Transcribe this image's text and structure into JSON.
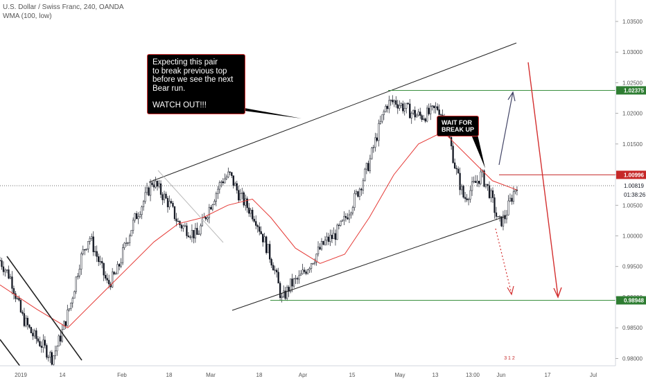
{
  "header": {
    "symbol_line": "U.S. Dollar / Swiss Franc, 240, OANDA",
    "indicator_line": "WMA (100, low)"
  },
  "annotations": {
    "main_note": {
      "lines": [
        "Expecting this pair",
        "to break previous top",
        "before we see the next",
        "Bear run."
      ],
      "emphasis": "WATCH OUT!!!"
    },
    "wait_note": {
      "lines": [
        "WAIT FOR",
        "BREAK UP"
      ]
    }
  },
  "price_labels": [
    {
      "value": "1.02375",
      "color": "#2e7d32"
    },
    {
      "value": "1.00996",
      "color": "#c62828"
    },
    {
      "value": "1.00819",
      "color": "#131722"
    },
    {
      "value": "01:38:26",
      "color": "#131722"
    },
    {
      "value": "0.98948",
      "color": "#2e7d32"
    }
  ],
  "watermark": "3 1 2",
  "colors": {
    "candles": "#131722",
    "wma": "#e53935",
    "channel": "#222222",
    "resistance": "#388e3c",
    "entry": "#c62828",
    "bull_arrow": "#424466",
    "bear_arrow": "#d32f2f"
  },
  "chart_data": {
    "type": "candlestick",
    "y_axis": {
      "ticks": [
        "1.03500",
        "1.03000",
        "1.02500",
        "1.02000",
        "1.01500",
        "1.01000",
        "1.00500",
        "1.00000",
        "0.99500",
        "0.99000",
        "0.98500",
        "0.98000"
      ],
      "ylim": [
        0.9788,
        1.0385
      ]
    },
    "x_axis": {
      "ticks": [
        "2019",
        "14",
        "Feb",
        "18",
        "Mar",
        "18",
        "Apr",
        "15",
        "May",
        "13",
        "13:00",
        "Jun",
        "17",
        "Jul"
      ]
    },
    "levels": {
      "resistance": 1.02375,
      "entry": 1.00996,
      "current": 1.00819,
      "support": 0.98948
    },
    "path": [
      [
        0.0,
        0.996
      ],
      [
        0.018,
        0.993
      ],
      [
        0.035,
        0.987
      ],
      [
        0.052,
        0.984
      ],
      [
        0.07,
        0.982
      ],
      [
        0.085,
        0.98
      ],
      [
        0.1,
        0.984
      ],
      [
        0.115,
        0.989
      ],
      [
        0.13,
        0.996
      ],
      [
        0.145,
        1.0
      ],
      [
        0.16,
        0.996
      ],
      [
        0.175,
        0.992
      ],
      [
        0.19,
        0.994
      ],
      [
        0.205,
        0.999
      ],
      [
        0.22,
        1.003
      ],
      [
        0.235,
        1.006
      ],
      [
        0.248,
        1.009
      ],
      [
        0.262,
        1.007
      ],
      [
        0.276,
        1.005
      ],
      [
        0.29,
        1.002
      ],
      [
        0.305,
        1.001
      ],
      [
        0.32,
        1.0
      ],
      [
        0.333,
        1.003
      ],
      [
        0.346,
        1.006
      ],
      [
        0.36,
        1.009
      ],
      [
        0.373,
        1.01
      ],
      [
        0.387,
        1.007
      ],
      [
        0.4,
        1.005
      ],
      [
        0.415,
        1.003
      ],
      [
        0.43,
        0.999
      ],
      [
        0.445,
        0.995
      ],
      [
        0.458,
        0.9895
      ],
      [
        0.472,
        0.992
      ],
      [
        0.486,
        0.993
      ],
      [
        0.5,
        0.995
      ],
      [
        0.514,
        0.997
      ],
      [
        0.528,
        0.999
      ],
      [
        0.543,
        1.0
      ],
      [
        0.557,
        1.002
      ],
      [
        0.571,
        1.005
      ],
      [
        0.585,
        1.008
      ],
      [
        0.6,
        1.012
      ],
      [
        0.614,
        1.017
      ],
      [
        0.628,
        1.0215
      ],
      [
        0.642,
        1.022
      ],
      [
        0.656,
        1.021
      ],
      [
        0.67,
        1.02
      ],
      [
        0.684,
        1.0195
      ],
      [
        0.698,
        1.02
      ],
      [
        0.712,
        1.021
      ],
      [
        0.726,
        1.018
      ],
      [
        0.74,
        1.011
      ],
      [
        0.754,
        1.006
      ],
      [
        0.768,
        1.008
      ],
      [
        0.782,
        1.01
      ],
      [
        0.796,
        1.007
      ],
      [
        0.81,
        1.002
      ],
      [
        0.82,
        1.003
      ],
      [
        0.83,
        1.006
      ],
      [
        0.84,
        1.0085
      ]
    ],
    "wma_path": [
      [
        0.0,
        0.992
      ],
      [
        0.06,
        0.988
      ],
      [
        0.11,
        0.985
      ],
      [
        0.16,
        0.99
      ],
      [
        0.21,
        0.995
      ],
      [
        0.25,
        0.999
      ],
      [
        0.29,
        1.002
      ],
      [
        0.33,
        1.003
      ],
      [
        0.37,
        1.005
      ],
      [
        0.41,
        1.006
      ],
      [
        0.44,
        1.003
      ],
      [
        0.48,
        0.998
      ],
      [
        0.52,
        0.9955
      ],
      [
        0.56,
        0.997
      ],
      [
        0.6,
        1.003
      ],
      [
        0.64,
        1.01
      ],
      [
        0.68,
        1.015
      ],
      [
        0.72,
        1.017
      ],
      [
        0.76,
        1.013
      ],
      [
        0.8,
        1.009
      ],
      [
        0.84,
        1.0075
      ]
    ]
  }
}
